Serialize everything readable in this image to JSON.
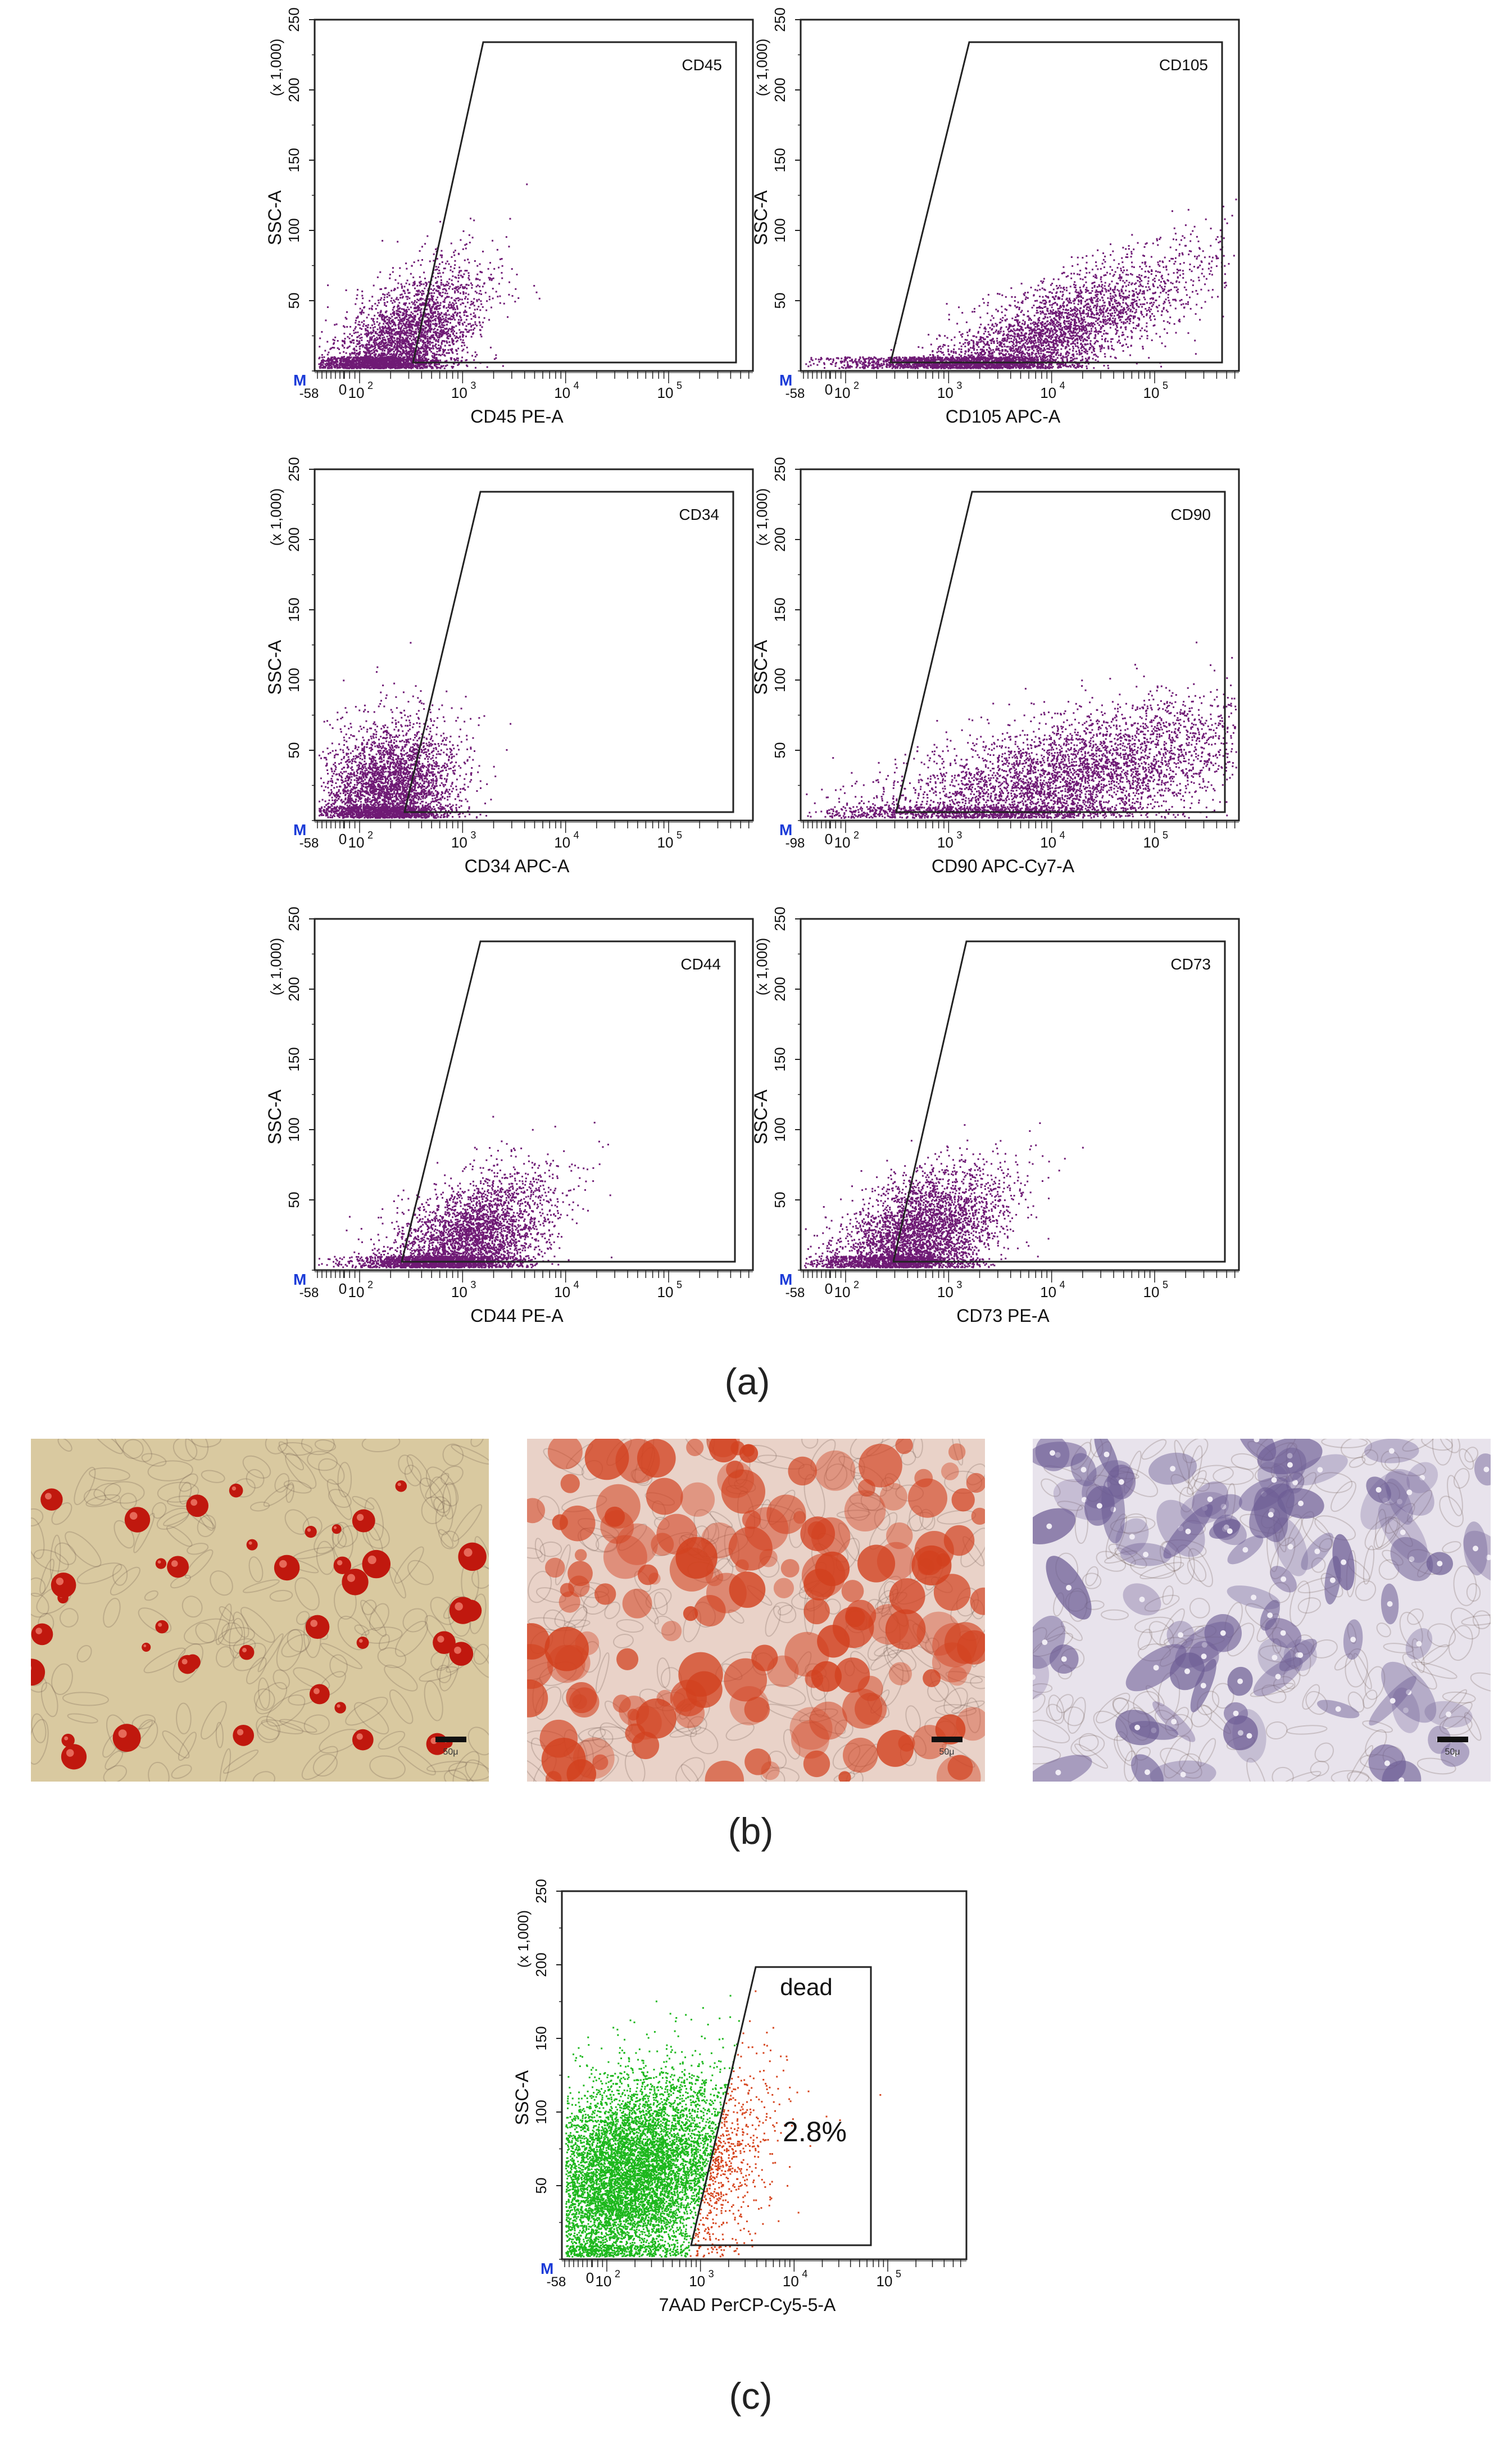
{
  "figure": {
    "captions": {
      "a": "(a)",
      "b": "(b)",
      "c": "(c)"
    },
    "panel_a": {
      "plots": [
        {
          "gate": "CD45",
          "xlabel": "CD45 PE-A",
          "xmin_tick": "-58"
        },
        {
          "gate": "CD105",
          "xlabel": "CD105 APC-A",
          "xmin_tick": "-58"
        },
        {
          "gate": "CD34",
          "xlabel": "CD34 APC-A",
          "xmin_tick": "-58"
        },
        {
          "gate": "CD90",
          "xlabel": "CD90 APC-Cy7-A",
          "xmin_tick": "-98"
        },
        {
          "gate": "CD44",
          "xlabel": "CD44 PE-A",
          "xmin_tick": "-58"
        },
        {
          "gate": "CD73",
          "xlabel": "CD73 PE-A",
          "xmin_tick": "-58"
        }
      ]
    },
    "panel_c": {
      "gate": "dead",
      "gate_percent": "2.8%",
      "xlabel": "7AAD PerCP-Cy5-5-A",
      "xmin_tick": "-58"
    },
    "axis_common": {
      "ylabel": "SSC-A",
      "yscale_label": "(x 1,000)",
      "yticks": [
        "50",
        "100",
        "150",
        "200",
        "250"
      ],
      "xticks_sup": [
        "2",
        "3",
        "4",
        "5"
      ],
      "xtick_base": "10",
      "x_zero": "0",
      "corner_marker": "M"
    },
    "panel_b": {
      "images": [
        {
          "stain": "oil-red",
          "bg": "#d9c9a0",
          "dot": "#c0180e"
        },
        {
          "stain": "alizarin-red",
          "bg": "#e9d2c8",
          "dot": "#d2401e"
        },
        {
          "stain": "toluidine-blue",
          "bg": "#e8e3ec",
          "dot": "#6c5c94"
        }
      ],
      "scale_label": "50μ"
    },
    "colors": {
      "dots_a": "#6f1a75",
      "live_c": "#1db81d",
      "dead_c": "#d6461f"
    }
  }
}
